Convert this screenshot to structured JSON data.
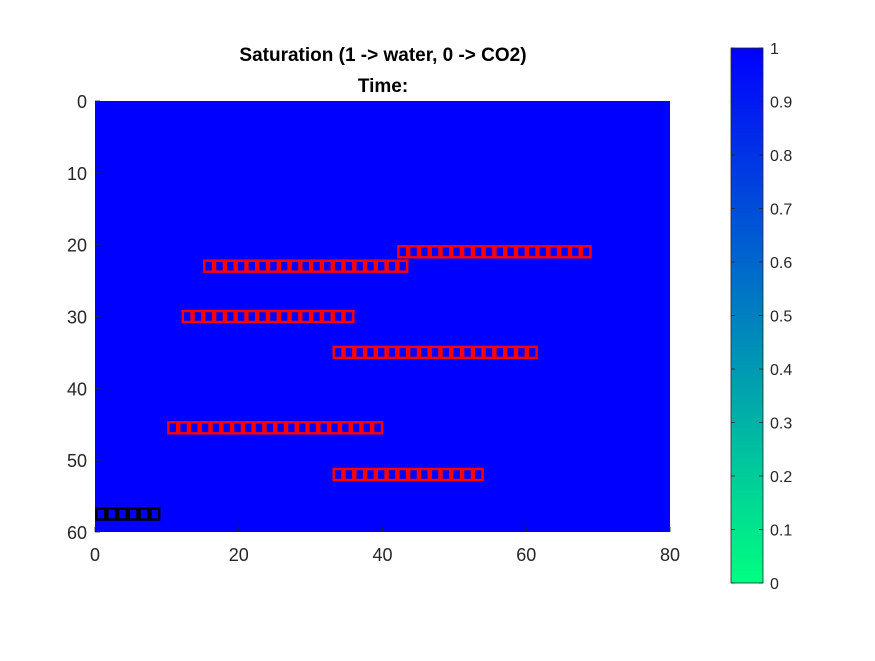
{
  "figure": {
    "background": "#ffffff"
  },
  "chart_data": {
    "type": "heatmap",
    "title": "Saturation (1 -> water, 0 -> CO2)",
    "subtitle": "Time:",
    "field_value": 1,
    "xlim": [
      0,
      80
    ],
    "ylim": [
      0,
      60
    ],
    "y_reversed": true,
    "x_ticks": [
      0,
      20,
      40,
      60,
      80
    ],
    "y_ticks": [
      0,
      10,
      20,
      30,
      40,
      50,
      60
    ],
    "grid": false,
    "colorbar": {
      "min": 0,
      "max": 1,
      "ticks": [
        "0",
        "0.1",
        "0.2",
        "0.3",
        "0.4",
        "0.5",
        "0.6",
        "0.7",
        "0.8",
        "0.9",
        "1"
      ],
      "color_low": "#00ff80",
      "color_high": "#0000ff",
      "placement": "right"
    },
    "well_groups": [
      {
        "color": "#ff0000",
        "row": 21,
        "col_start": 42,
        "count": 18
      },
      {
        "color": "#ff0000",
        "row": 23,
        "col_start": 15,
        "count": 19
      },
      {
        "color": "#ff0000",
        "row": 30,
        "col_start": 12,
        "count": 16
      },
      {
        "color": "#ff0000",
        "row": 35,
        "col_start": 33,
        "count": 19
      },
      {
        "color": "#ff0000",
        "row": 45.5,
        "col_start": 10,
        "count": 20
      },
      {
        "color": "#ff0000",
        "row": 52,
        "col_start": 33,
        "count": 14
      },
      {
        "color": "#000000",
        "row": 57.5,
        "col_start": 0,
        "count": 6
      }
    ]
  }
}
